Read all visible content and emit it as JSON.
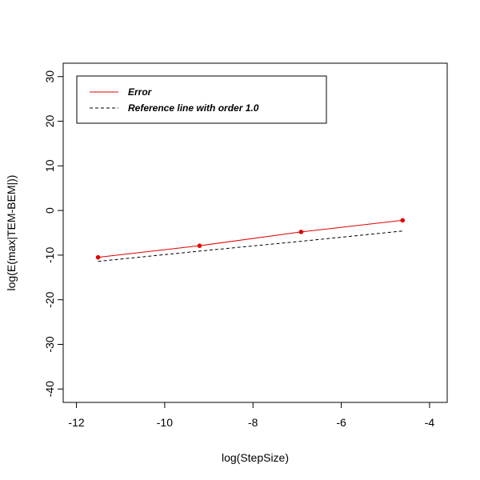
{
  "chart_data": {
    "type": "line",
    "xlabel": "log(StepSize)",
    "ylabel": "log(E(max|TEM-BEM|))",
    "xlim": [
      -12.3,
      -3.6
    ],
    "ylim": [
      -43,
      33
    ],
    "x_ticks": [
      -12,
      -10,
      -8,
      -6,
      -4
    ],
    "y_ticks": [
      -40,
      -30,
      -20,
      -10,
      0,
      10,
      20,
      30
    ],
    "grid": false,
    "legend_position": "top-left",
    "series": [
      {
        "name": "Error",
        "color": "#e00000",
        "style": "solid",
        "markers": true,
        "x": [
          -11.51,
          -9.21,
          -6.91,
          -4.61
        ],
        "y": [
          -10.5,
          -7.9,
          -4.8,
          -2.2
        ]
      },
      {
        "name": "Reference line with order 1.0",
        "color": "#000000",
        "style": "dashed",
        "markers": false,
        "x": [
          -11.51,
          -9.21,
          -6.91,
          -4.61
        ],
        "y": [
          -11.4,
          -9.1,
          -6.9,
          -4.6
        ]
      }
    ]
  }
}
